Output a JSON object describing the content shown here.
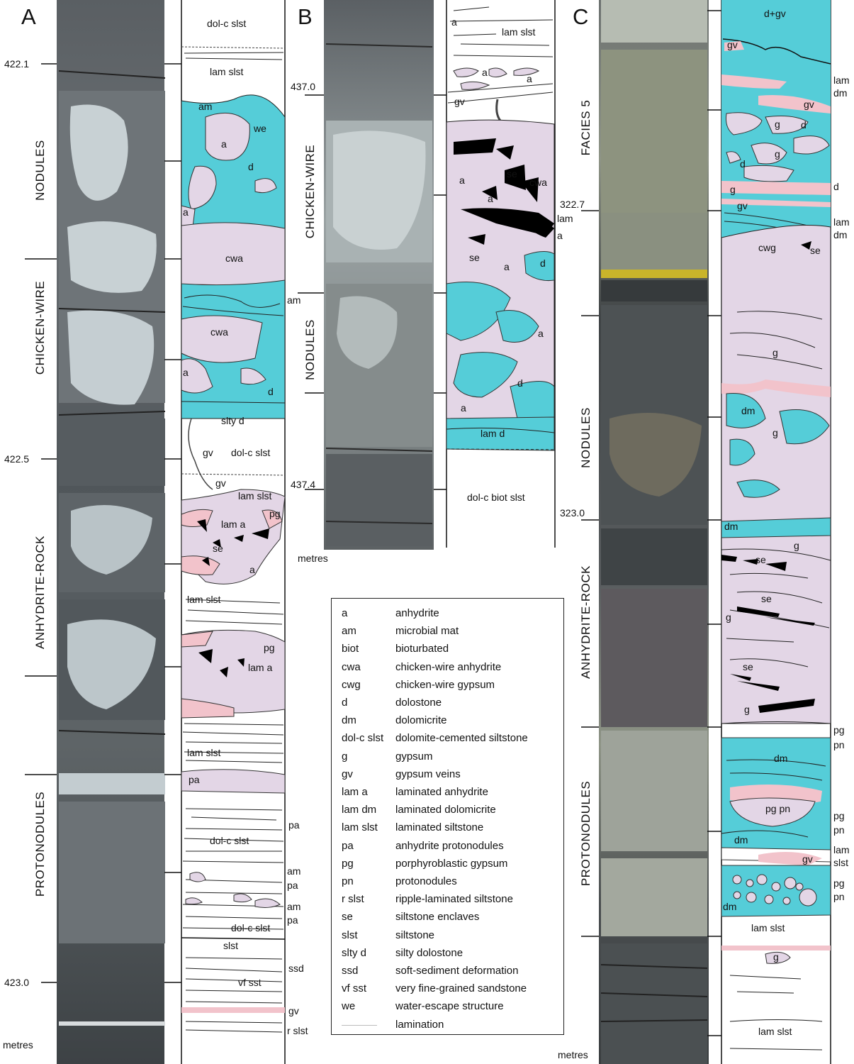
{
  "colors": {
    "dolostone": "#55cdd8",
    "anhydrite": "#e3d6e6",
    "gypsum_pink": "#f2c3cb",
    "enclave": "#000000",
    "lamination": "#222222",
    "core_dark": "#4d5257",
    "core_light": "#c9d2d6"
  },
  "panels": {
    "A": {
      "letter": "A",
      "facies": [
        "NODULES",
        "CHICKEN-WIRE",
        "ANHYDRITE-ROCK",
        "PROTONODULES"
      ],
      "depths": [
        "422.1",
        "422.5",
        "423.0"
      ],
      "units_label": "metres",
      "labels": [
        "dol-c slst",
        "lam slst",
        "am",
        "a",
        "we",
        "d",
        "a",
        "cwa",
        "am",
        "cwa",
        "a",
        "d",
        "slty d",
        "gv",
        "dol-c slst",
        "gv",
        "lam slst",
        "pg",
        "lam a",
        "se",
        "a",
        "lam slst",
        "pg",
        "lam a",
        "lam slst",
        "pa",
        "pa",
        "dol-c slst",
        "am",
        "pa",
        "am",
        "pa",
        "dol-c slst",
        "slst",
        "ssd",
        "vf sst",
        "gv",
        "r slst"
      ]
    },
    "B": {
      "letter": "B",
      "facies": [
        "CHICKEN-WIRE",
        "NODULES"
      ],
      "depths": [
        "437.0",
        "437.4"
      ],
      "units_label": "metres",
      "labels": [
        "a",
        "lam slst",
        "a",
        "a",
        "gv",
        "se",
        "cwa",
        "a",
        "a",
        "lam",
        "a",
        "se",
        "a",
        "d",
        "a",
        "d",
        "a",
        "lam d",
        "dol-c biot slst"
      ]
    },
    "C": {
      "letter": "C",
      "facies": [
        "FACIES 5",
        "NODULES",
        "ANHYDRITE-ROCK",
        "PROTONODULES"
      ],
      "depths": [
        "322.7",
        "323.0"
      ],
      "units_label": "metres",
      "labels": [
        "d+gv",
        "gv",
        "lam",
        "dm",
        "gv",
        "g",
        "d",
        "g",
        "d",
        "d",
        "g",
        "gv",
        "lam",
        "dm",
        "cwg",
        "se",
        "g",
        "dm",
        "g",
        "dm",
        "g",
        "se",
        "se",
        "g",
        "se",
        "g",
        "pg",
        "pn",
        "dm",
        "pg pn",
        "pg",
        "pn",
        "dm",
        "lam",
        "slst",
        "gv",
        "pg",
        "pn",
        "dm",
        "lam slst",
        "g",
        "lam slst"
      ]
    }
  },
  "legend": {
    "items": [
      {
        "abbr": "a",
        "desc": "anhydrite"
      },
      {
        "abbr": "am",
        "desc": "microbial mat"
      },
      {
        "abbr": "biot",
        "desc": "bioturbated"
      },
      {
        "abbr": "cwa",
        "desc": "chicken-wire anhydrite"
      },
      {
        "abbr": "cwg",
        "desc": "chicken-wire gypsum"
      },
      {
        "abbr": "d",
        "desc": "dolostone"
      },
      {
        "abbr": "dm",
        "desc": "dolomicrite"
      },
      {
        "abbr": "dol-c slst",
        "desc": "dolomite-cemented siltstone"
      },
      {
        "abbr": "g",
        "desc": "gypsum"
      },
      {
        "abbr": "gv",
        "desc": "gypsum veins"
      },
      {
        "abbr": "lam a",
        "desc": "laminated anhydrite"
      },
      {
        "abbr": "lam dm",
        "desc": "laminated dolomicrite"
      },
      {
        "abbr": "lam slst",
        "desc": "laminated siltstone"
      },
      {
        "abbr": "pa",
        "desc": "anhydrite protonodules"
      },
      {
        "abbr": "pg",
        "desc": "porphyroblastic gypsum"
      },
      {
        "abbr": "pn",
        "desc": "protonodules"
      },
      {
        "abbr": "r slst",
        "desc": "ripple-laminated siltstone"
      },
      {
        "abbr": "se",
        "desc": "siltstone enclaves"
      },
      {
        "abbr": "slst",
        "desc": "siltstone"
      },
      {
        "abbr": "slty d",
        "desc": "silty dolostone"
      },
      {
        "abbr": "ssd",
        "desc": "soft-sediment deformation"
      },
      {
        "abbr": "vf sst",
        "desc": "very fine-grained sandstone"
      },
      {
        "abbr": "we",
        "desc": "water-escape structure"
      },
      {
        "abbr": "",
        "desc": "lamination"
      }
    ]
  }
}
